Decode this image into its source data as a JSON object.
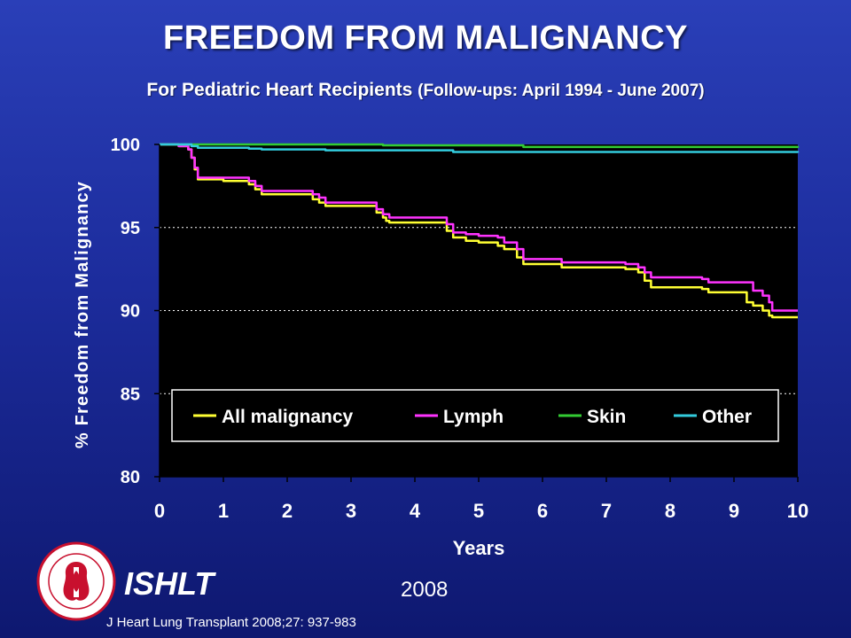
{
  "slide": {
    "title": "FREEDOM FROM MALIGNANCY",
    "subtitle_main": "For Pediatric Heart Recipients",
    "subtitle_detail": "(Follow-ups: April 1994 - June 2007)",
    "org": "ISHLT",
    "year": "2008",
    "citation": "J Heart Lung Transplant 2008;27: 937-983",
    "logo_text": "INTERNATIONAL SOCIETY FOR HEART & LUNG TRANSPLANTATION"
  },
  "chart_data": {
    "type": "line",
    "step": true,
    "title": "",
    "xlabel": "Years",
    "ylabel": "% Freedom from Malignancy",
    "xlim": [
      0,
      10
    ],
    "ylim": [
      80,
      100
    ],
    "xticks": [
      0,
      1,
      2,
      3,
      4,
      5,
      6,
      7,
      8,
      9,
      10
    ],
    "yticks": [
      80,
      85,
      90,
      95,
      100
    ],
    "grid": "horizontal dashed",
    "background": "#000000",
    "legend_position": "lower-center inside plot",
    "series": [
      {
        "name": "All malignancy",
        "color": "#ffff33",
        "x": [
          0,
          0.3,
          0.45,
          0.5,
          0.55,
          0.6,
          1.0,
          1.4,
          1.5,
          1.6,
          2.4,
          2.5,
          2.6,
          3.4,
          3.5,
          3.55,
          3.6,
          4.5,
          4.6,
          4.8,
          5.0,
          5.3,
          5.4,
          5.6,
          5.7,
          6.3,
          7.3,
          7.5,
          7.6,
          7.7,
          8.0,
          8.5,
          8.6,
          9.2,
          9.3,
          9.45,
          9.55,
          9.6,
          10
        ],
        "y": [
          100,
          99.9,
          99.7,
          99.2,
          98.5,
          97.9,
          97.8,
          97.6,
          97.3,
          97.0,
          96.7,
          96.5,
          96.3,
          95.9,
          95.6,
          95.4,
          95.3,
          94.8,
          94.4,
          94.2,
          94.1,
          93.9,
          93.7,
          93.2,
          92.8,
          92.6,
          92.5,
          92.3,
          91.8,
          91.4,
          91.4,
          91.3,
          91.1,
          90.5,
          90.3,
          90.0,
          89.7,
          89.6,
          89.6
        ],
        "end": 89.6
      },
      {
        "name": "Lymph",
        "color": "#ff33ff",
        "x": [
          0,
          0.3,
          0.45,
          0.5,
          0.55,
          0.6,
          1.0,
          1.4,
          1.5,
          1.6,
          2.4,
          2.5,
          2.6,
          3.4,
          3.5,
          3.6,
          4.5,
          4.6,
          4.8,
          5.0,
          5.3,
          5.4,
          5.6,
          5.7,
          6.3,
          7.3,
          7.5,
          7.6,
          7.7,
          8.0,
          8.5,
          8.6,
          9.2,
          9.3,
          9.45,
          9.55,
          9.6,
          10
        ],
        "y": [
          100,
          99.9,
          99.7,
          99.2,
          98.6,
          98.0,
          98.0,
          97.8,
          97.5,
          97.2,
          97.0,
          96.8,
          96.5,
          96.1,
          95.8,
          95.6,
          95.2,
          94.7,
          94.6,
          94.5,
          94.4,
          94.1,
          93.7,
          93.1,
          92.9,
          92.8,
          92.6,
          92.3,
          92.0,
          92.0,
          91.9,
          91.7,
          91.7,
          91.2,
          90.9,
          90.5,
          90.0,
          90.0
        ],
        "end": 90.0
      },
      {
        "name": "Skin",
        "color": "#33cc33",
        "x": [
          0,
          3.5,
          5.7,
          10
        ],
        "y": [
          100,
          99.95,
          99.85,
          99.8
        ],
        "end": 99.8
      },
      {
        "name": "Other",
        "color": "#33ccdd",
        "x": [
          0,
          0.5,
          0.6,
          1.4,
          1.6,
          2.6,
          4.6,
          10
        ],
        "y": [
          100,
          99.9,
          99.8,
          99.75,
          99.7,
          99.65,
          99.55,
          99.5
        ],
        "end": 99.5
      }
    ]
  }
}
